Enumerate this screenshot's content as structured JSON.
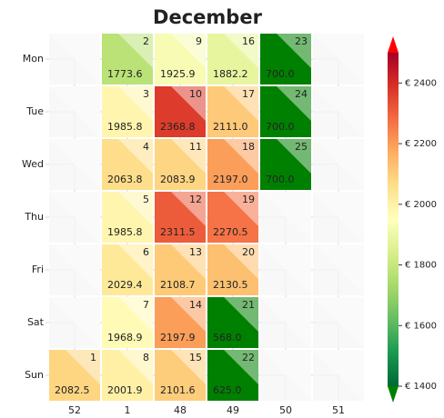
{
  "chart_data": {
    "type": "calendar-heatmap",
    "title": "December",
    "weeks": [
      "52",
      "1",
      "48",
      "49",
      "50",
      "51"
    ],
    "weekdays": [
      "Mon",
      "Tue",
      "Wed",
      "Thu",
      "Fri",
      "Sat",
      "Sun"
    ],
    "cells": [
      {
        "week": "52",
        "weekday": "Sun",
        "day": 1,
        "value": 2082.5,
        "value_label": "2082.5"
      },
      {
        "week": "1",
        "weekday": "Mon",
        "day": 2,
        "value": 1773.6,
        "value_label": "1773.6"
      },
      {
        "week": "1",
        "weekday": "Tue",
        "day": 3,
        "value": 1985.8,
        "value_label": "1985.8"
      },
      {
        "week": "1",
        "weekday": "Wed",
        "day": 4,
        "value": 2063.8,
        "value_label": "2063.8"
      },
      {
        "week": "1",
        "weekday": "Thu",
        "day": 5,
        "value": 1985.8,
        "value_label": "1985.8"
      },
      {
        "week": "1",
        "weekday": "Fri",
        "day": 6,
        "value": 2029.4,
        "value_label": "2029.4"
      },
      {
        "week": "1",
        "weekday": "Sat",
        "day": 7,
        "value": 1968.9,
        "value_label": "1968.9"
      },
      {
        "week": "1",
        "weekday": "Sun",
        "day": 8,
        "value": 2001.9,
        "value_label": "2001.9"
      },
      {
        "week": "48",
        "weekday": "Mon",
        "day": 9,
        "value": 1925.9,
        "value_label": "1925.9"
      },
      {
        "week": "48",
        "weekday": "Tue",
        "day": 10,
        "value": 2368.8,
        "value_label": "2368.8"
      },
      {
        "week": "48",
        "weekday": "Wed",
        "day": 11,
        "value": 2083.9,
        "value_label": "2083.9"
      },
      {
        "week": "48",
        "weekday": "Thu",
        "day": 12,
        "value": 2311.5,
        "value_label": "2311.5"
      },
      {
        "week": "48",
        "weekday": "Fri",
        "day": 13,
        "value": 2108.7,
        "value_label": "2108.7"
      },
      {
        "week": "48",
        "weekday": "Sat",
        "day": 14,
        "value": 2197.9,
        "value_label": "2197.9"
      },
      {
        "week": "48",
        "weekday": "Sun",
        "day": 15,
        "value": 2101.6,
        "value_label": "2101.6"
      },
      {
        "week": "49",
        "weekday": "Mon",
        "day": 16,
        "value": 1882.2,
        "value_label": "1882.2"
      },
      {
        "week": "49",
        "weekday": "Tue",
        "day": 17,
        "value": 2111,
        "value_label": "2111.0"
      },
      {
        "week": "49",
        "weekday": "Wed",
        "day": 18,
        "value": 2197,
        "value_label": "2197.0"
      },
      {
        "week": "49",
        "weekday": "Thu",
        "day": 19,
        "value": 2270.5,
        "value_label": "2270.5"
      },
      {
        "week": "49",
        "weekday": "Fri",
        "day": 20,
        "value": 2130.5,
        "value_label": "2130.5"
      },
      {
        "week": "49",
        "weekday": "Sat",
        "day": 21,
        "value": 568,
        "value_label": "568.0"
      },
      {
        "week": "49",
        "weekday": "Sun",
        "day": 22,
        "value": 625,
        "value_label": "625.0"
      },
      {
        "week": "50",
        "weekday": "Mon",
        "day": 23,
        "value": 700,
        "value_label": "700.0"
      },
      {
        "week": "50",
        "weekday": "Tue",
        "day": 24,
        "value": 700,
        "value_label": "700.0"
      },
      {
        "week": "50",
        "weekday": "Wed",
        "day": 25,
        "value": 700,
        "value_label": "700.0"
      }
    ],
    "clim": [
      1400,
      2500
    ],
    "cticks": [
      {
        "value": 1400,
        "label": "€ 1400"
      },
      {
        "value": 1600,
        "label": "€ 1600"
      },
      {
        "value": 1800,
        "label": "€ 1800"
      },
      {
        "value": 2000,
        "label": "€ 2000"
      },
      {
        "value": 2200,
        "label": "€ 2200"
      },
      {
        "value": 2400,
        "label": "€ 2400"
      }
    ],
    "colormap": [
      "#006837",
      "#1a9850",
      "#66bd63",
      "#a6d96a",
      "#d9ef8b",
      "#ffffbf",
      "#fee08b",
      "#fdae61",
      "#f46d43",
      "#d73027",
      "#a50026"
    ],
    "under_color": "#008000",
    "over_color": "#ff0000",
    "grid": true
  }
}
